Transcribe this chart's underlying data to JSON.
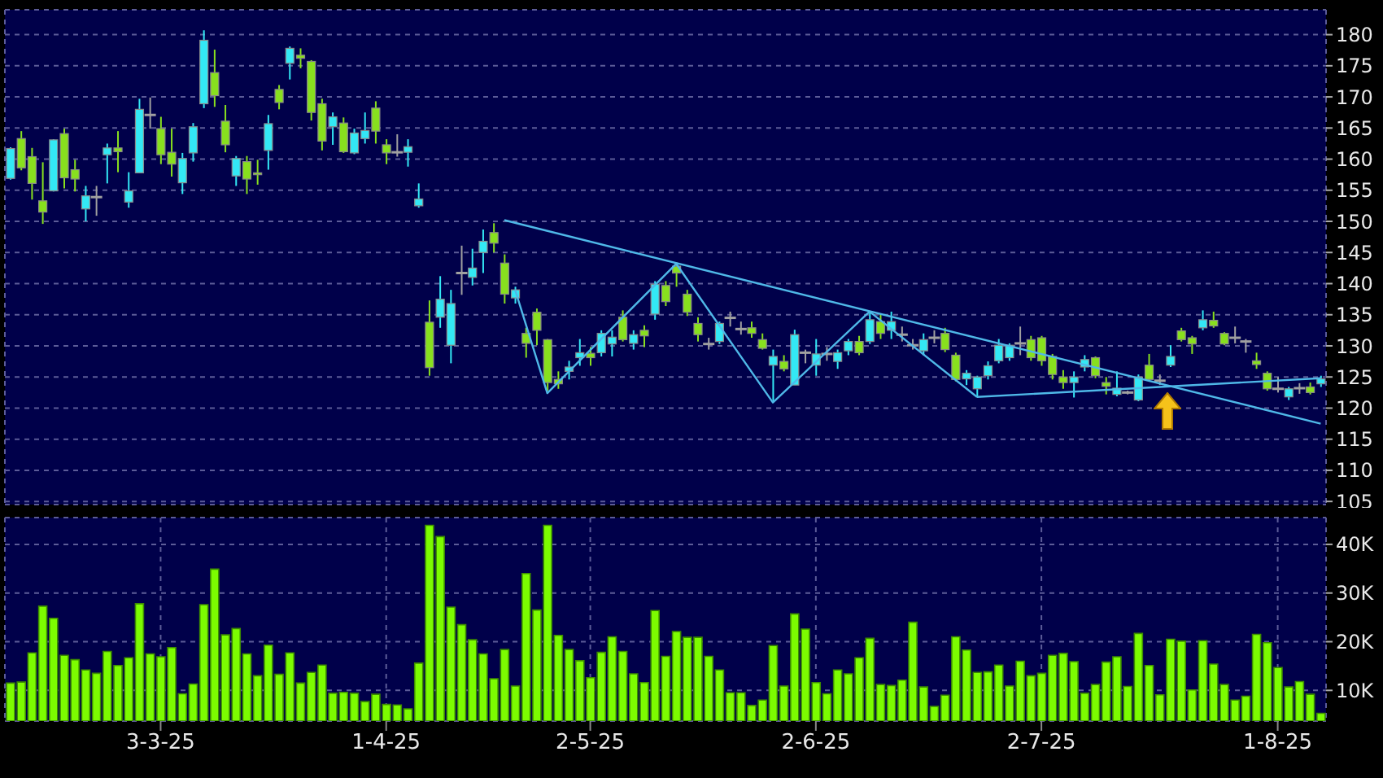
{
  "chart_data": [
    {
      "type": "candlestick",
      "categories": [
        null,
        null,
        null,
        null,
        null,
        null,
        null,
        null,
        null,
        null,
        null,
        null,
        null,
        null,
        null,
        null,
        null,
        null,
        null,
        null,
        null,
        null,
        null,
        null,
        null,
        null,
        null,
        null,
        null,
        null,
        null,
        null,
        null,
        null,
        null,
        null,
        null,
        null,
        null,
        null,
        null,
        null,
        null,
        null,
        null,
        null,
        null,
        null,
        null,
        null,
        null,
        null,
        null,
        null,
        null,
        null,
        null,
        null,
        null,
        null,
        null,
        null,
        null,
        null,
        null,
        null,
        null,
        null,
        null,
        null,
        null,
        null,
        null,
        null,
        null,
        null,
        null,
        null,
        null,
        null,
        null,
        null,
        null,
        null,
        null,
        null,
        null,
        null,
        null,
        null,
        null,
        null,
        null,
        null,
        null,
        null,
        null,
        null,
        null,
        null,
        null,
        null,
        null,
        null,
        null,
        null,
        null,
        null,
        null,
        null,
        null,
        null,
        null,
        null,
        null,
        null,
        null,
        null,
        null,
        null,
        null,
        null,
        null
      ],
      "ohlc": [
        [
          156.9,
          161.9,
          156.7,
          161.7
        ],
        [
          163.3,
          164.5,
          158.2,
          158.6
        ],
        [
          160.4,
          161.8,
          153.5,
          156.1
        ],
        [
          153.3,
          159.5,
          149.6,
          151.5
        ],
        [
          154.9,
          163.2,
          154.8,
          163.1
        ],
        [
          164.1,
          164.9,
          155.3,
          157.0
        ],
        [
          158.3,
          159.9,
          154.8,
          156.8
        ],
        [
          152.0,
          155.7,
          150.0,
          154.1
        ],
        [
          153.9,
          155.7,
          150.9,
          153.9
        ],
        [
          160.7,
          162.5,
          156.1,
          161.8
        ],
        [
          161.8,
          164.5,
          157.9,
          161.2
        ],
        [
          153.1,
          157.9,
          152.2,
          154.9
        ],
        [
          157.8,
          169.7,
          157.8,
          168.0
        ],
        [
          167.1,
          169.9,
          164.9,
          167.1
        ],
        [
          164.9,
          166.8,
          159.2,
          160.7
        ],
        [
          161.1,
          164.9,
          157.2,
          159.2
        ],
        [
          156.2,
          161.0,
          154.4,
          160.1
        ],
        [
          161.0,
          165.8,
          159.6,
          165.2
        ],
        [
          168.9,
          180.7,
          168.2,
          179.1
        ],
        [
          173.9,
          177.6,
          168.4,
          170.2
        ],
        [
          166.1,
          168.7,
          161.1,
          162.3
        ],
        [
          157.3,
          160.5,
          155.7,
          160.1
        ],
        [
          159.6,
          160.5,
          154.4,
          156.8
        ],
        [
          157.8,
          159.9,
          155.9,
          157.5
        ],
        [
          161.4,
          167.1,
          158.3,
          165.7
        ],
        [
          171.2,
          171.9,
          168.0,
          169.1
        ],
        [
          175.4,
          178.1,
          172.8,
          177.8
        ],
        [
          176.7,
          177.8,
          174.6,
          176.2
        ],
        [
          175.7,
          175.9,
          166.2,
          167.5
        ],
        [
          168.9,
          169.7,
          161.4,
          162.9
        ],
        [
          165.2,
          167.5,
          162.3,
          166.8
        ],
        [
          165.8,
          166.7,
          161.0,
          161.2
        ],
        [
          161.0,
          164.9,
          160.8,
          164.2
        ],
        [
          163.3,
          167.5,
          162.5,
          164.6
        ],
        [
          168.2,
          169.3,
          162.5,
          164.5
        ],
        [
          162.3,
          163.2,
          159.2,
          161.0
        ],
        [
          161.1,
          164.0,
          160.4,
          161.1
        ],
        [
          161.1,
          163.2,
          158.8,
          162.0
        ],
        [
          152.5,
          156.1,
          152.2,
          153.6
        ],
        [
          133.8,
          137.3,
          125.2,
          126.5
        ],
        [
          134.6,
          141.2,
          132.9,
          137.5
        ],
        [
          130.1,
          139.0,
          127.2,
          136.8
        ],
        [
          141.7,
          146.1,
          138.2,
          141.7
        ],
        [
          141.0,
          145.6,
          139.7,
          142.5
        ],
        [
          145.0,
          148.7,
          141.7,
          146.8
        ],
        [
          148.2,
          149.7,
          145.0,
          146.5
        ],
        [
          143.3,
          144.7,
          136.8,
          138.3
        ],
        [
          137.7,
          139.5,
          136.8,
          139.0
        ],
        [
          132.0,
          132.9,
          128.1,
          130.4
        ],
        [
          135.4,
          136.0,
          130.1,
          132.5
        ],
        [
          131.0,
          131.1,
          122.8,
          124.1
        ],
        [
          124.6,
          125.9,
          123.1,
          123.9
        ],
        [
          125.9,
          127.6,
          124.6,
          126.6
        ],
        [
          128.1,
          131.1,
          126.8,
          128.9
        ],
        [
          128.8,
          129.8,
          126.8,
          128.1
        ],
        [
          128.9,
          132.5,
          128.3,
          132.0
        ],
        [
          130.3,
          132.5,
          128.3,
          131.4
        ],
        [
          134.6,
          135.7,
          130.7,
          131.0
        ],
        [
          130.4,
          132.5,
          129.4,
          131.8
        ],
        [
          132.5,
          133.3,
          129.8,
          131.6
        ],
        [
          135.1,
          140.4,
          134.2,
          139.9
        ],
        [
          139.7,
          140.4,
          136.4,
          137.1
        ],
        [
          142.8,
          143.4,
          139.5,
          141.7
        ],
        [
          138.3,
          139.0,
          134.8,
          135.4
        ],
        [
          133.6,
          134.6,
          130.7,
          131.8
        ],
        [
          130.3,
          131.3,
          129.4,
          130.3
        ],
        [
          130.7,
          133.9,
          130.3,
          133.6
        ],
        [
          134.5,
          135.5,
          133.1,
          134.5
        ],
        [
          132.7,
          133.9,
          131.8,
          132.7
        ],
        [
          132.9,
          133.9,
          131.3,
          132.0
        ],
        [
          131.0,
          132.0,
          129.4,
          129.6
        ],
        [
          126.9,
          129.4,
          121.1,
          128.3
        ],
        [
          127.5,
          128.5,
          125.9,
          126.3
        ],
        [
          123.7,
          132.6,
          123.7,
          131.8
        ],
        [
          128.9,
          129.4,
          127.2,
          128.9
        ],
        [
          126.9,
          131.1,
          125.2,
          128.7
        ],
        [
          128.7,
          129.8,
          127.6,
          128.7
        ],
        [
          127.5,
          129.4,
          126.3,
          128.9
        ],
        [
          129.2,
          131.1,
          128.5,
          130.7
        ],
        [
          130.7,
          131.6,
          128.5,
          128.9
        ],
        [
          130.7,
          135.4,
          130.3,
          134.2
        ],
        [
          133.9,
          135.1,
          131.1,
          132.0
        ],
        [
          132.5,
          135.5,
          131.1,
          133.9
        ],
        [
          131.8,
          133.1,
          130.7,
          131.8
        ],
        [
          130.1,
          131.1,
          129.4,
          130.1
        ],
        [
          129.2,
          132.0,
          128.5,
          131.0
        ],
        [
          131.3,
          132.5,
          130.4,
          131.3
        ],
        [
          132.0,
          132.9,
          129.0,
          129.4
        ],
        [
          128.5,
          128.9,
          124.3,
          124.6
        ],
        [
          124.7,
          126.1,
          123.7,
          125.6
        ],
        [
          123.1,
          125.2,
          121.7,
          125.0
        ],
        [
          125.2,
          127.5,
          124.6,
          126.8
        ],
        [
          127.6,
          131.1,
          127.2,
          130.1
        ],
        [
          128.1,
          130.4,
          127.6,
          130.1
        ],
        [
          130.4,
          133.1,
          128.5,
          130.4
        ],
        [
          131.0,
          131.6,
          127.6,
          128.1
        ],
        [
          131.3,
          131.6,
          126.8,
          127.6
        ],
        [
          128.3,
          128.7,
          124.6,
          125.4
        ],
        [
          125.0,
          126.1,
          123.1,
          124.1
        ],
        [
          124.1,
          125.9,
          121.7,
          125.0
        ],
        [
          126.6,
          128.5,
          125.9,
          127.8
        ],
        [
          128.1,
          128.3,
          124.8,
          125.2
        ],
        [
          124.1,
          125.0,
          122.2,
          123.5
        ],
        [
          122.2,
          125.9,
          121.9,
          123.2
        ],
        [
          122.5,
          122.8,
          122.2,
          122.5
        ],
        [
          121.3,
          125.4,
          121.1,
          125.0
        ],
        [
          126.9,
          128.7,
          124.3,
          124.6
        ],
        [
          124.4,
          125.4,
          123.7,
          124.4
        ],
        [
          126.9,
          130.1,
          126.6,
          128.3
        ],
        [
          132.4,
          132.9,
          130.7,
          131.0
        ],
        [
          131.3,
          131.6,
          128.7,
          130.3
        ],
        [
          132.9,
          135.7,
          132.5,
          134.2
        ],
        [
          134.1,
          135.5,
          132.9,
          133.2
        ],
        [
          132.0,
          132.2,
          130.1,
          130.3
        ],
        [
          131.3,
          133.1,
          130.4,
          131.3
        ],
        [
          130.7,
          131.1,
          128.9,
          130.7
        ],
        [
          127.6,
          128.9,
          126.3,
          127.0
        ],
        [
          125.6,
          125.9,
          122.8,
          123.1
        ],
        [
          123.1,
          125.0,
          122.5,
          123.1
        ],
        [
          121.8,
          123.4,
          121.3,
          123.1
        ],
        [
          123.2,
          124.0,
          122.3,
          123.2
        ],
        [
          123.4,
          124.1,
          122.2,
          122.5
        ],
        [
          123.9,
          125.2,
          123.4,
          124.7
        ]
      ],
      "colors": [
        "#33e8f5",
        "#88e01e",
        "#88e01e",
        "#88e01e",
        "#33e8f5",
        "#88e01e",
        "#88e01e",
        "#33e8f5",
        "#a0a0a0",
        "#33e8f5",
        "#88e01e",
        "#33e8f5",
        "#33e8f5",
        "#a0a0a0",
        "#88e01e",
        "#88e01e",
        "#33e8f5",
        "#33e8f5",
        "#33e8f5",
        "#88e01e",
        "#88e01e",
        "#33e8f5",
        "#88e01e",
        "#88e01e",
        "#33e8f5",
        "#88e01e",
        "#33e8f5",
        "#88e01e",
        "#88e01e",
        "#88e01e",
        "#33e8f5",
        "#88e01e",
        "#33e8f5",
        "#33e8f5",
        "#88e01e",
        "#88e01e",
        "#a0a0a0",
        "#33e8f5",
        "#33e8f5",
        "#88e01e",
        "#33e8f5",
        "#33e8f5",
        "#a0a0a0",
        "#33e8f5",
        "#33e8f5",
        "#88e01e",
        "#88e01e",
        "#33e8f5",
        "#88e01e",
        "#88e01e",
        "#88e01e",
        "#88e01e",
        "#33e8f5",
        "#33e8f5",
        "#88e01e",
        "#33e8f5",
        "#33e8f5",
        "#88e01e",
        "#33e8f5",
        "#88e01e",
        "#33e8f5",
        "#88e01e",
        "#88e01e",
        "#88e01e",
        "#88e01e",
        "#a0a0a0",
        "#33e8f5",
        "#a0a0a0",
        "#a0a0a0",
        "#88e01e",
        "#88e01e",
        "#33e8f5",
        "#88e01e",
        "#33e8f5",
        "#a0a0a0",
        "#33e8f5",
        "#a0a0a0",
        "#33e8f5",
        "#33e8f5",
        "#88e01e",
        "#33e8f5",
        "#88e01e",
        "#33e8f5",
        "#a0a0a0",
        "#a0a0a0",
        "#33e8f5",
        "#a0a0a0",
        "#88e01e",
        "#88e01e",
        "#33e8f5",
        "#33e8f5",
        "#33e8f5",
        "#33e8f5",
        "#33e8f5",
        "#a0a0a0",
        "#88e01e",
        "#88e01e",
        "#88e01e",
        "#88e01e",
        "#33e8f5",
        "#33e8f5",
        "#88e01e",
        "#88e01e",
        "#33e8f5",
        "#a0a0a0",
        "#33e8f5",
        "#88e01e",
        "#a0a0a0",
        "#33e8f5",
        "#88e01e",
        "#88e01e",
        "#33e8f5",
        "#88e01e",
        "#88e01e",
        "#a0a0a0",
        "#a0a0a0",
        "#88e01e",
        "#88e01e",
        "#a0a0a0",
        "#33e8f5",
        "#a0a0a0",
        "#88e01e",
        "#33e8f5"
      ],
      "series": [
        {
          "type": "line",
          "color": "#4fb8e8",
          "values": [
            null,
            null,
            null,
            null,
            null,
            null,
            null,
            null,
            null,
            null,
            null,
            null,
            null,
            null,
            null,
            null,
            null,
            null,
            null,
            null,
            null,
            null,
            null,
            null,
            null,
            null,
            null,
            null,
            null,
            null,
            null,
            null,
            null,
            null,
            null,
            null,
            null,
            null,
            null,
            null,
            null,
            null,
            null,
            null,
            null,
            null,
            150.2,
            null,
            null,
            null,
            null,
            null,
            null,
            null,
            null,
            null,
            null,
            null,
            null,
            null,
            null,
            null,
            null,
            null,
            null,
            null,
            null,
            null,
            null,
            null,
            null,
            null,
            null,
            null,
            null,
            null,
            null,
            null,
            null,
            null,
            null,
            null,
            null,
            null,
            null,
            null,
            null,
            null,
            null,
            null,
            null,
            null,
            null,
            null,
            null,
            null,
            null,
            null,
            null,
            null,
            null,
            null,
            null,
            null,
            null,
            null,
            null,
            null,
            null,
            null,
            null,
            null,
            null,
            null,
            null,
            null,
            null,
            null,
            null,
            null,
            null,
            null,
            117.5
          ]
        },
        {
          "type": "line",
          "color": "#4fb8e8",
          "values": [
            null,
            null,
            null,
            null,
            null,
            null,
            null,
            null,
            null,
            null,
            null,
            null,
            null,
            null,
            null,
            null,
            null,
            null,
            null,
            null,
            null,
            null,
            null,
            null,
            null,
            null,
            null,
            null,
            null,
            null,
            null,
            null,
            null,
            null,
            null,
            null,
            null,
            null,
            null,
            null,
            null,
            null,
            null,
            null,
            null,
            null,
            null,
            null,
            null,
            null,
            null,
            null,
            null,
            null,
            null,
            null,
            null,
            null,
            null,
            null,
            null,
            null,
            null,
            null,
            null,
            null,
            null,
            null,
            null,
            null,
            null,
            null,
            null,
            null,
            null,
            null,
            null,
            null,
            null,
            null,
            null,
            null,
            null,
            null,
            null,
            null,
            null,
            null,
            null,
            null,
            121.8,
            null,
            null,
            null,
            null,
            null,
            null,
            null,
            null,
            null,
            null,
            null,
            null,
            null,
            null,
            null,
            null,
            null,
            null,
            null,
            null,
            null,
            null,
            null,
            null,
            null,
            null,
            null,
            null,
            null,
            null,
            null,
            124.8
          ]
        },
        {
          "type": "line",
          "color": "#4fb8e8",
          "values": [
            null,
            null,
            null,
            null,
            null,
            null,
            null,
            null,
            null,
            null,
            null,
            null,
            null,
            null,
            null,
            null,
            null,
            null,
            null,
            null,
            null,
            null,
            null,
            null,
            null,
            null,
            null,
            null,
            null,
            null,
            null,
            null,
            null,
            null,
            null,
            null,
            null,
            null,
            null,
            null,
            null,
            null,
            null,
            null,
            null,
            null,
            null,
            139.0,
            null,
            null,
            122.4,
            null,
            null,
            null,
            null,
            null,
            null,
            null,
            null,
            null,
            null,
            null,
            143.2,
            null,
            null,
            null,
            null,
            null,
            null,
            null,
            null,
            120.9,
            null,
            null,
            null,
            null,
            null,
            null,
            null,
            null,
            135.5,
            null,
            null,
            null,
            null,
            null,
            null,
            null,
            null,
            null,
            121.8,
            null,
            null,
            null,
            null,
            null,
            null,
            null,
            null,
            null,
            null,
            null,
            null,
            null,
            null,
            null,
            null,
            null,
            null,
            null,
            null,
            null,
            null,
            null,
            null,
            null,
            null,
            null,
            null,
            null,
            null,
            null,
            null
          ]
        }
      ],
      "ylim": [
        104.5,
        184
      ],
      "yticks": [
        105,
        110,
        115,
        120,
        125,
        130,
        135,
        140,
        145,
        150,
        155,
        160,
        165,
        170,
        175,
        180
      ],
      "grid": true,
      "tick_labels": "y"
    },
    {
      "type": "bar",
      "categories": [
        null,
        null,
        null,
        null,
        null,
        null,
        null,
        null,
        null,
        null,
        null,
        null,
        null,
        null,
        "3-3-25",
        null,
        null,
        null,
        null,
        null,
        null,
        null,
        null,
        null,
        null,
        null,
        null,
        null,
        null,
        null,
        null,
        null,
        null,
        null,
        null,
        "1-4-25",
        null,
        null,
        null,
        null,
        null,
        null,
        null,
        null,
        null,
        null,
        null,
        null,
        null,
        null,
        null,
        null,
        null,
        null,
        "2-5-25",
        null,
        null,
        null,
        null,
        null,
        null,
        null,
        null,
        null,
        null,
        null,
        null,
        null,
        null,
        null,
        null,
        null,
        null,
        null,
        null,
        "2-6-25",
        null,
        null,
        null,
        null,
        null,
        null,
        null,
        null,
        null,
        null,
        null,
        null,
        null,
        null,
        null,
        null,
        null,
        null,
        null,
        null,
        "2-7-25",
        null,
        null,
        null,
        null,
        null,
        null,
        null,
        null,
        null,
        null,
        null,
        null,
        null,
        null,
        null,
        null,
        null,
        null,
        null,
        null,
        null,
        "1-8-25",
        null,
        null,
        null,
        null
      ],
      "values": [
        11500,
        11700,
        17700,
        27300,
        24800,
        17200,
        16300,
        14200,
        13500,
        18000,
        15100,
        16700,
        27800,
        17500,
        16900,
        18800,
        9300,
        11300,
        27600,
        34900,
        21400,
        22700,
        17500,
        13000,
        19300,
        13300,
        17700,
        11500,
        13700,
        15200,
        9400,
        9600,
        9400,
        7700,
        9200,
        7100,
        7000,
        6200,
        15600,
        43900,
        41600,
        27100,
        23500,
        20400,
        17500,
        12400,
        18400,
        10900,
        34000,
        26500,
        43900,
        21300,
        18400,
        16100,
        12600,
        17800,
        21000,
        18000,
        13400,
        11600,
        26400,
        17000,
        22100,
        20900,
        20900,
        17000,
        14200,
        9500,
        9500,
        6900,
        8000,
        19200,
        10900,
        25700,
        22600,
        11600,
        9300,
        14200,
        13400,
        16700,
        20700,
        11200,
        11000,
        12100,
        24000,
        10700,
        6700,
        9000,
        21000,
        18300,
        13700,
        13800,
        15200,
        10900,
        16000,
        13000,
        13500,
        17200,
        17600,
        15900,
        9400,
        11200,
        15800,
        16900,
        10800,
        21700,
        15100,
        9100,
        20500,
        20100,
        10100,
        20200,
        15400,
        11200,
        8000,
        8800,
        21500,
        19800,
        14700,
        10700,
        11800,
        9200,
        5300
      ],
      "color": "#7cfc00",
      "ylim": [
        3700,
        45500
      ],
      "yticks": [
        {
          "value": 10000,
          "label": "10K"
        },
        {
          "value": 20000,
          "label": "20K"
        },
        {
          "value": 30000,
          "label": "30K"
        },
        {
          "value": 40000,
          "label": "40K"
        }
      ],
      "grid": true
    }
  ]
}
